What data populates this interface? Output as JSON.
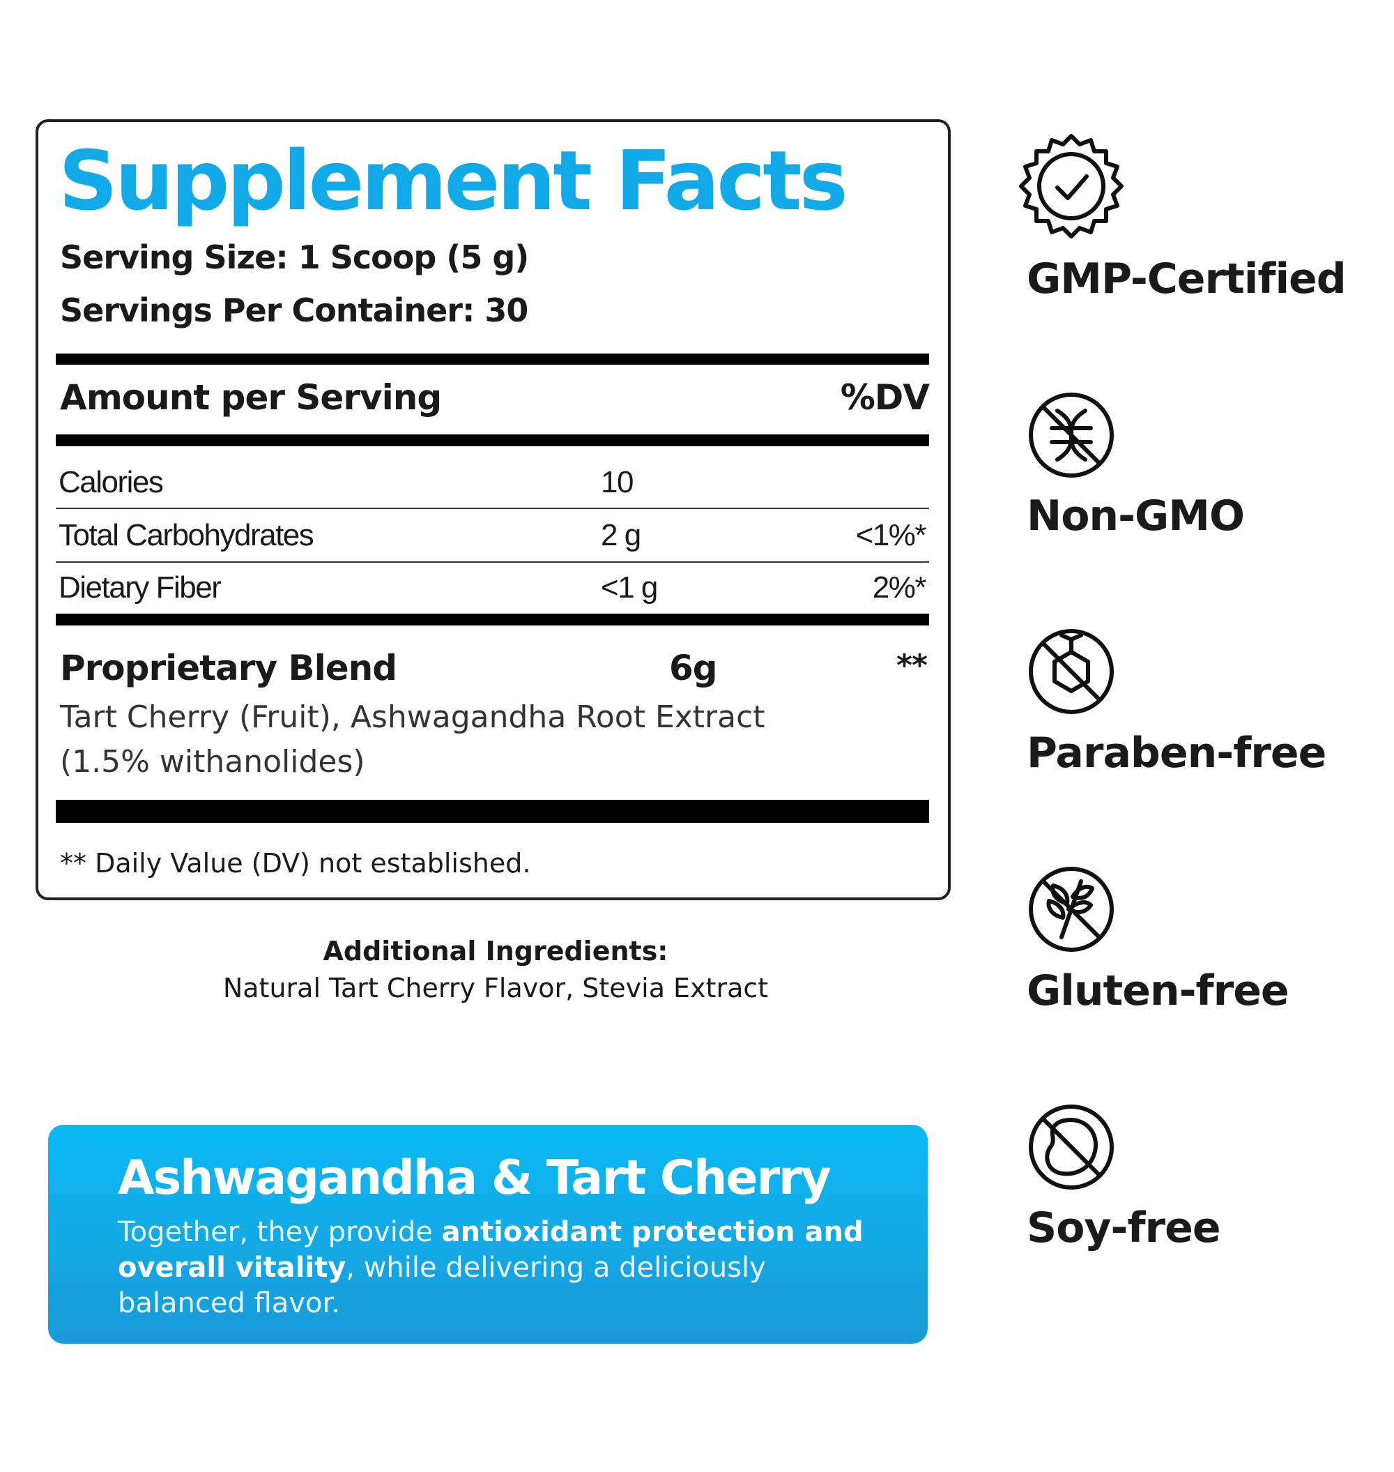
{
  "facts": {
    "title": "Supplement Facts",
    "serving_size": "Serving Size: 1 Scoop (5 g)",
    "servings_per_container": "Servings Per Container: 30",
    "amount_header": "Amount per Serving",
    "dv_header": "%DV",
    "rows": [
      {
        "label": "Calories",
        "amount": "10"
      },
      {
        "label": "Total Carbohydrates",
        "amount": "2 g",
        "dv": "<1%*"
      },
      {
        "label": "Dietary Fiber",
        "amount": "<1 g",
        "dv": "2%*"
      }
    ],
    "blend": {
      "label": "Proprietary Blend",
      "amount": "6g",
      "dv": "**",
      "ingredients_line1": "Tart Cherry (Fruit), Ashwagandha Root Extract",
      "ingredients_line2": "(1.5% withanolides)"
    },
    "footnote": "** Daily Value (DV) not established."
  },
  "additional": {
    "heading": "Additional Ingredients:",
    "text": "Natural Tart Cherry Flavor, Stevia Extract"
  },
  "card": {
    "heading": "Ashwagandha & Tart Cherry",
    "body": [
      {
        "text": "Together, they provide ",
        "bold": false
      },
      {
        "text": "antioxidant protection and overall vitality",
        "bold": true
      },
      {
        "text": ", while delivering a deliciously balanced flavor.",
        "bold": false
      }
    ]
  },
  "badges": [
    "GMP-Certified",
    "Non-GMO",
    "Paraben-free",
    "Gluten-free",
    "Soy-free"
  ]
}
